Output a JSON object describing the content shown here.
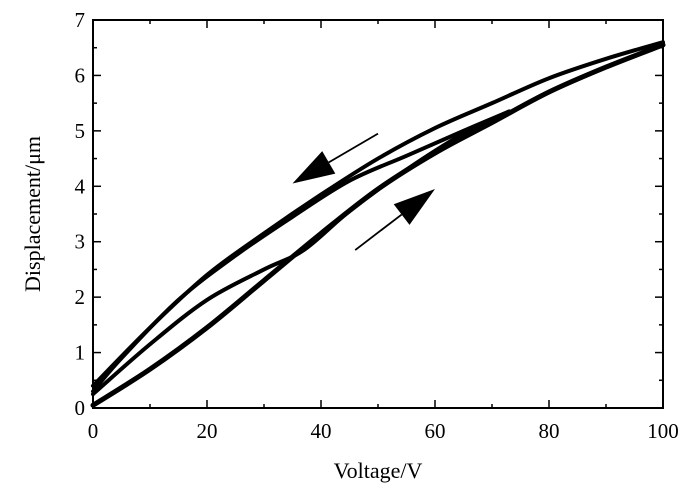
{
  "chart_data": {
    "type": "line",
    "title": "",
    "xlabel": "Voltage/V",
    "ylabel": "Displacement/μm",
    "xlim": [
      0,
      100
    ],
    "ylim": [
      0,
      7
    ],
    "xticks": [
      "0",
      "20",
      "40",
      "60",
      "80",
      "100"
    ],
    "yticks": [
      "0",
      "1",
      "2",
      "3",
      "4",
      "5",
      "6",
      "7"
    ],
    "grid": false,
    "legend": "none",
    "series": [
      {
        "name": "outer loop ascending",
        "x": [
          0,
          10,
          20,
          30,
          40,
          50,
          60,
          70,
          80,
          90,
          100
        ],
        "y": [
          0.05,
          0.7,
          1.45,
          2.3,
          3.15,
          3.95,
          4.6,
          5.15,
          5.7,
          6.15,
          6.55
        ]
      },
      {
        "name": "outer loop descending",
        "x": [
          100,
          90,
          80,
          70,
          60,
          50,
          40,
          30,
          20,
          10,
          0
        ],
        "y": [
          6.6,
          6.3,
          5.95,
          5.5,
          5.05,
          4.5,
          3.85,
          3.15,
          2.4,
          1.45,
          0.4
        ]
      },
      {
        "name": "inner loop ascending",
        "x": [
          0,
          10,
          20,
          30,
          37,
          45,
          55,
          65,
          73
        ],
        "y": [
          0.25,
          1.15,
          1.95,
          2.5,
          2.85,
          3.55,
          4.3,
          4.95,
          5.35
        ]
      },
      {
        "name": "inner loop descending",
        "x": [
          73,
          65,
          55,
          45,
          35,
          25,
          15,
          5,
          0
        ],
        "y": [
          5.35,
          5.0,
          4.55,
          4.1,
          3.45,
          2.75,
          1.95,
          0.9,
          0.3
        ]
      }
    ],
    "annotations": [
      {
        "name": "decreasing-voltage arrow",
        "from": [
          50,
          4.95
        ],
        "to": [
          35,
          4.05
        ]
      },
      {
        "name": "increasing-voltage arrow",
        "from": [
          46,
          2.85
        ],
        "to": [
          60,
          3.95
        ]
      }
    ]
  }
}
